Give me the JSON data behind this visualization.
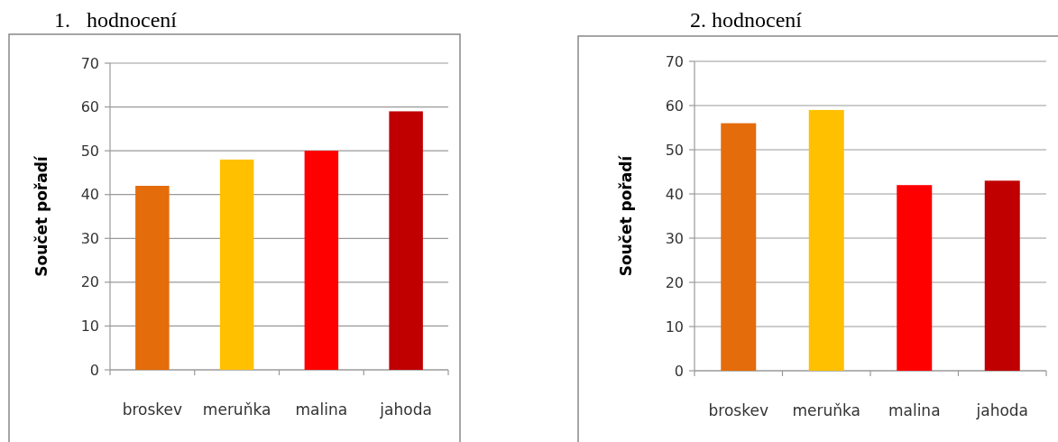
{
  "chart_data": [
    {
      "type": "bar",
      "title": "1.   hodnocení",
      "ylabel": "Součet pořadí",
      "categories": [
        "broskev",
        "meruňka",
        "malina",
        "jahoda"
      ],
      "values": [
        42,
        48,
        50,
        59
      ],
      "colors": [
        "#e46c0a",
        "#ffc000",
        "#ff0000",
        "#c00000"
      ],
      "ylim": [
        0,
        70
      ],
      "yticks": [
        0,
        10,
        20,
        30,
        40,
        50,
        60,
        70
      ],
      "grid": "y"
    },
    {
      "type": "bar",
      "title": "2. hodnocení",
      "ylabel": "Součet pořadí",
      "categories": [
        "broskev",
        "meruňka",
        "malina",
        "jahoda"
      ],
      "values": [
        56,
        59,
        42,
        43
      ],
      "colors": [
        "#e46c0a",
        "#ffc000",
        "#ff0000",
        "#c00000"
      ],
      "ylim": [
        0,
        70
      ],
      "yticks": [
        0,
        10,
        20,
        30,
        40,
        50,
        60,
        70
      ],
      "grid": "y"
    }
  ]
}
